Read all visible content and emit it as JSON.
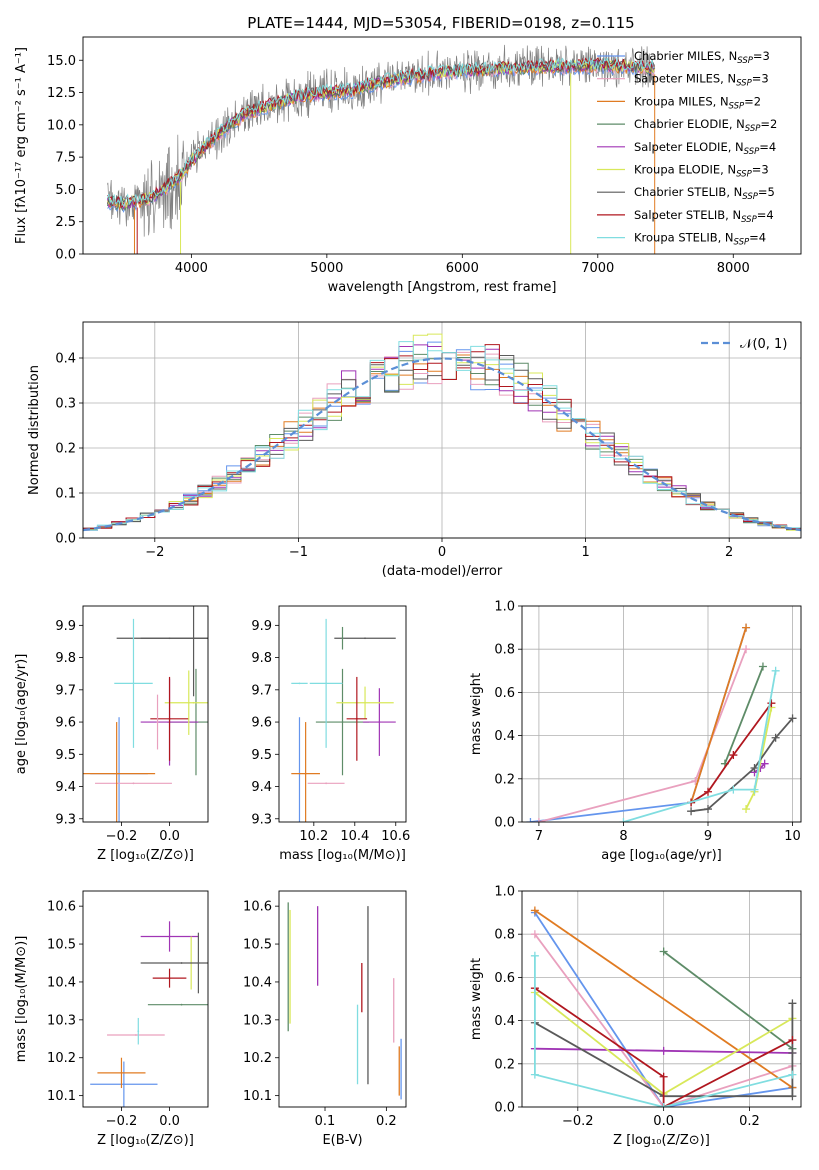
{
  "colors": {
    "chabrier_miles": "#6495ED",
    "salpeter_miles": "#E9A0BE",
    "kroupa_miles": "#E07B22",
    "chabrier_elodie": "#5E8C68",
    "salpeter_elodie": "#A035B5",
    "kroupa_elodie": "#D8E85A",
    "chabrier_stelib": "#5A5A5A",
    "salpeter_stelib": "#B0171F",
    "kroupa_stelib": "#80DDE0",
    "normal_dash": "#5B8FD6",
    "data": "#808080"
  },
  "chart_data": [
    {
      "type": "line",
      "title": "PLATE=1444, MJD=53054, FIBERID=0198, z=0.115",
      "xlabel": "wavelength [Angstrom, rest frame]",
      "ylabel": "Flux [fλ10⁻¹⁷ erg cm⁻² s⁻¹ A⁻¹]",
      "xlim": [
        3200,
        8500
      ],
      "ylim": [
        0,
        16.8
      ],
      "xticks": [
        "4000",
        "5000",
        "6000",
        "7000",
        "8000"
      ],
      "yticks": [
        "0.0",
        "2.5",
        "5.0",
        "7.5",
        "10.0",
        "12.5",
        "15.0"
      ],
      "x_range_data": [
        3380,
        7420
      ],
      "spectrum_shape": {
        "x": [
          3380,
          3500,
          3700,
          3900,
          4000,
          4200,
          4400,
          4600,
          4800,
          5000,
          5200,
          5400,
          5600,
          5800,
          6000,
          6200,
          6400,
          6600,
          6800,
          7000,
          7200,
          7420
        ],
        "y": [
          4.0,
          3.9,
          4.3,
          5.8,
          7.2,
          9.3,
          10.9,
          11.6,
          12.2,
          12.5,
          12.7,
          13.3,
          13.7,
          14.0,
          14.2,
          14.3,
          14.4,
          14.5,
          14.5,
          14.6,
          14.5,
          14.4
        ]
      },
      "legend_position": "upper right",
      "legend": [
        {
          "label": "Chabrier MILES, N",
          "sub": "SSP",
          "suffix": "=3",
          "color": "#6495ED"
        },
        {
          "label": "Salpeter MILES, N",
          "sub": "SSP",
          "suffix": "=3",
          "color": "#E9A0BE"
        },
        {
          "label": "Kroupa MILES, N",
          "sub": "SSP",
          "suffix": "=2",
          "color": "#E07B22"
        },
        {
          "label": "Chabrier ELODIE, N",
          "sub": "SSP",
          "suffix": "=2",
          "color": "#5E8C68"
        },
        {
          "label": "Salpeter ELODIE, N",
          "sub": "SSP",
          "suffix": "=4",
          "color": "#A035B5"
        },
        {
          "label": "Kroupa ELODIE, N",
          "sub": "SSP",
          "suffix": "=3",
          "color": "#D8E85A"
        },
        {
          "label": "Chabrier STELIB, N",
          "sub": "SSP",
          "suffix": "=5",
          "color": "#5A5A5A"
        },
        {
          "label": "Salpeter STELIB, N",
          "sub": "SSP",
          "suffix": "=4",
          "color": "#B0171F"
        },
        {
          "label": "Kroupa STELIB, N",
          "sub": "SSP",
          "suffix": "=4",
          "color": "#80DDE0"
        }
      ]
    },
    {
      "type": "area",
      "xlabel": "(data-model)/error",
      "ylabel": "Normed distribution",
      "xlim": [
        -2.5,
        2.5
      ],
      "ylim": [
        0,
        0.48
      ],
      "xticks": [
        "−2",
        "−1",
        "0",
        "1",
        "2"
      ],
      "yticks": [
        "0.0",
        "0.1",
        "0.2",
        "0.3",
        "0.4"
      ],
      "grid": true,
      "legend_label": "𝒩(0, 1)",
      "legend_position": "upper right",
      "bin_width": 0.1,
      "bin_start": -2.5
    },
    {
      "type": "scatter",
      "xlabel": "Z [log₁₀(Z/Z⊙)]",
      "ylabel": "age  [log₁₀(age/yr)]",
      "xlim": [
        -0.36,
        0.16
      ],
      "ylim": [
        9.29,
        9.96
      ],
      "xticks": [
        "−0.2",
        "0.0"
      ],
      "yticks": [
        "9.3",
        "9.4",
        "9.5",
        "9.6",
        "9.7",
        "9.8",
        "9.9"
      ],
      "points": [
        {
          "x": -0.21,
          "y": 9.44,
          "xerr": 0.12,
          "yerr": 0.35,
          "color": "#6495ED"
        },
        {
          "x": -0.15,
          "y": 9.41,
          "xerr": 0.16,
          "yerr": 0.0,
          "color": "#E9A0BE"
        },
        {
          "x": -0.22,
          "y": 9.44,
          "xerr": 0.16,
          "yerr": 0.32,
          "color": "#E07B22"
        },
        {
          "x": 0.11,
          "y": 9.6,
          "xerr": 0.12,
          "yerr": 0.33,
          "color": "#5E8C68"
        },
        {
          "x": 0.0,
          "y": 9.6,
          "xerr": 0.12,
          "yerr": 0.27,
          "color": "#A035B5"
        },
        {
          "x": 0.1,
          "y": 9.66,
          "xerr": 0.12,
          "yerr": 0.0,
          "color": "#D8E85A"
        },
        {
          "x": 0.0,
          "y": 9.86,
          "xerr": 0.22,
          "yerr": 0.0,
          "color": "#5A5A5A"
        },
        {
          "x": 0.1,
          "y": 9.86,
          "xerr": 0.22,
          "yerr": 0.36,
          "color": "#5A5A5A"
        },
        {
          "x": 0.0,
          "y": 9.61,
          "xerr": 0.08,
          "yerr": 0.26,
          "color": "#B0171F"
        },
        {
          "x": -0.15,
          "y": 9.72,
          "xerr": 0.08,
          "yerr": 0.4,
          "color": "#80DDE0"
        },
        {
          "x": -0.05,
          "y": 9.6,
          "xerr": 0.0,
          "yerr": 0.17,
          "color": "#E9A0BE"
        },
        {
          "x": 0.08,
          "y": 9.66,
          "xerr": 0.0,
          "yerr": 0.2,
          "color": "#D8E85A"
        }
      ]
    },
    {
      "type": "scatter",
      "xlabel": "mass [log₁₀(M/M⊙)]",
      "ylabel": "",
      "xlim": [
        10.03,
        10.65
      ],
      "ylim": [
        9.29,
        9.96
      ],
      "xticks": [
        "10.2",
        "10.4",
        "10.6"
      ],
      "yticks": [
        "9.3",
        "9.4",
        "9.5",
        "9.6",
        "9.7",
        "9.8",
        "9.9"
      ],
      "points": [
        {
          "x": 10.13,
          "y": 9.44,
          "xerr": 0.0,
          "yerr": 0.35,
          "color": "#6495ED"
        },
        {
          "x": 10.26,
          "y": 9.41,
          "xerr": 0.09,
          "yerr": 0.0,
          "color": "#E9A0BE"
        },
        {
          "x": 10.16,
          "y": 9.44,
          "xerr": 0.07,
          "yerr": 0.32,
          "color": "#E07B22"
        },
        {
          "x": 10.34,
          "y": 9.6,
          "xerr": 0.13,
          "yerr": 0.33,
          "color": "#5E8C68"
        },
        {
          "x": 10.52,
          "y": 9.6,
          "xerr": 0.08,
          "yerr": 0.21,
          "color": "#A035B5"
        },
        {
          "x": 10.45,
          "y": 9.66,
          "xerr": 0.14,
          "yerr": 0.1,
          "color": "#D8E85A"
        },
        {
          "x": 10.45,
          "y": 9.86,
          "xerr": 0.15,
          "yerr": 0.0,
          "color": "#5A5A5A"
        },
        {
          "x": 10.41,
          "y": 9.61,
          "xerr": 0.05,
          "yerr": 0.26,
          "color": "#B0171F"
        },
        {
          "x": 10.26,
          "y": 9.72,
          "xerr": 0.08,
          "yerr": 0.4,
          "color": "#80DDE0"
        },
        {
          "x": 10.13,
          "y": 9.72,
          "xerr": 0.04,
          "yerr": 0.0,
          "color": "#80DDE0"
        },
        {
          "x": 10.34,
          "y": 9.86,
          "xerr": 0.0,
          "yerr": 0.07,
          "color": "#5E8C68"
        }
      ]
    },
    {
      "type": "line",
      "xlabel": "age  [log₁₀(age/yr)]",
      "ylabel": "mass weight",
      "xlim": [
        6.8,
        10.1
      ],
      "ylim": [
        0,
        1.0
      ],
      "xticks": [
        "7",
        "8",
        "9",
        "10"
      ],
      "yticks": [
        "0.0",
        "0.2",
        "0.4",
        "0.6",
        "0.8",
        "1.0"
      ],
      "grid": true,
      "series": [
        {
          "color": "#6495ED",
          "x": [
            6.9,
            8.8,
            9.45
          ],
          "y": [
            0.0,
            0.09,
            0.9
          ]
        },
        {
          "color": "#E9A0BE",
          "x": [
            7.0,
            8.85,
            9.45
          ],
          "y": [
            0.0,
            0.19,
            0.8
          ]
        },
        {
          "color": "#E07B22",
          "x": [
            8.8,
            9.45
          ],
          "y": [
            0.09,
            0.9
          ]
        },
        {
          "color": "#5E8C68",
          "x": [
            9.2,
            9.65
          ],
          "y": [
            0.27,
            0.72
          ]
        },
        {
          "color": "#A035B5",
          "x": [
            9.55,
            9.62,
            9.67
          ],
          "y": [
            0.23,
            0.25,
            0.27
          ]
        },
        {
          "color": "#D8E85A",
          "x": [
            9.45,
            9.55,
            9.75
          ],
          "y": [
            0.06,
            0.14,
            0.53
          ]
        },
        {
          "color": "#5A5A5A",
          "x": [
            8.8,
            9.0,
            9.55,
            9.8,
            10.0
          ],
          "y": [
            0.05,
            0.06,
            0.25,
            0.39,
            0.48
          ]
        },
        {
          "color": "#B0171F",
          "x": [
            8.8,
            9.0,
            9.3,
            9.75
          ],
          "y": [
            0.09,
            0.14,
            0.31,
            0.55
          ]
        },
        {
          "color": "#80DDE0",
          "x": [
            8.0,
            9.3,
            9.55,
            9.8
          ],
          "y": [
            0.0,
            0.15,
            0.15,
            0.7
          ]
        }
      ]
    },
    {
      "type": "scatter",
      "xlabel": "Z [log₁₀(Z/Z⊙)]",
      "ylabel": "mass [log₁₀(M/M⊙)]",
      "xlim": [
        -0.36,
        0.16
      ],
      "ylim": [
        10.07,
        10.64
      ],
      "xticks": [
        "−0.2",
        "0.0"
      ],
      "yticks": [
        "10.1",
        "10.2",
        "10.3",
        "10.4",
        "10.5",
        "10.6"
      ],
      "points": [
        {
          "x": -0.19,
          "y": 10.13,
          "xerr": 0.14,
          "yerr": 0.12,
          "color": "#6495ED"
        },
        {
          "x": -0.2,
          "y": 10.16,
          "xerr": 0.1,
          "yerr": 0.08,
          "color": "#E07B22"
        },
        {
          "x": -0.14,
          "y": 10.26,
          "xerr": 0.12,
          "yerr": 0.0,
          "color": "#E9A0BE"
        },
        {
          "x": 0.05,
          "y": 10.34,
          "xerr": 0.14,
          "yerr": 0.0,
          "color": "#5E8C68"
        },
        {
          "x": 0.0,
          "y": 10.52,
          "xerr": 0.12,
          "yerr": 0.08,
          "color": "#A035B5"
        },
        {
          "x": 0.09,
          "y": 10.45,
          "xerr": 0.0,
          "yerr": 0.14,
          "color": "#D8E85A"
        },
        {
          "x": 0.05,
          "y": 10.45,
          "xerr": 0.17,
          "yerr": 0.0,
          "color": "#5A5A5A"
        },
        {
          "x": 0.12,
          "y": 10.45,
          "xerr": 0.0,
          "yerr": 0.16,
          "color": "#5A5A5A"
        },
        {
          "x": 0.0,
          "y": 10.41,
          "xerr": 0.07,
          "yerr": 0.05,
          "color": "#B0171F"
        },
        {
          "x": -0.13,
          "y": 10.27,
          "xerr": 0.0,
          "yerr": 0.07,
          "color": "#80DDE0"
        }
      ]
    },
    {
      "type": "scatter",
      "xlabel": "E(B-V)",
      "ylabel": "",
      "xlim": [
        0.025,
        0.232
      ],
      "ylim": [
        10.07,
        10.64
      ],
      "xticks": [
        "0.1",
        "0.2"
      ],
      "yticks": [
        "10.1",
        "10.2",
        "10.3",
        "10.4",
        "10.5",
        "10.6"
      ],
      "segments": [
        {
          "x": 0.04,
          "y0": 10.27,
          "y1": 10.61,
          "color": "#5E8C68"
        },
        {
          "x": 0.043,
          "y0": 10.29,
          "y1": 10.59,
          "color": "#D8E85A"
        },
        {
          "x": 0.088,
          "y0": 10.39,
          "y1": 10.6,
          "color": "#A035B5"
        },
        {
          "x": 0.153,
          "y0": 10.13,
          "y1": 10.34,
          "color": "#80DDE0"
        },
        {
          "x": 0.16,
          "y0": 10.32,
          "y1": 10.45,
          "color": "#B0171F"
        },
        {
          "x": 0.17,
          "y0": 10.13,
          "y1": 10.6,
          "color": "#5A5A5A"
        },
        {
          "x": 0.212,
          "y0": 10.24,
          "y1": 10.41,
          "color": "#E9A0BE"
        },
        {
          "x": 0.221,
          "y0": 10.1,
          "y1": 10.23,
          "color": "#E07B22"
        },
        {
          "x": 0.224,
          "y0": 10.09,
          "y1": 10.25,
          "color": "#6495ED"
        }
      ]
    },
    {
      "type": "line",
      "xlabel": "Z [log₁₀(Z/Z⊙)]",
      "ylabel": "mass weight",
      "xlim": [
        -0.33,
        0.32
      ],
      "ylim": [
        0,
        1.0
      ],
      "xticks": [
        "−0.2",
        "0.0",
        "0.2"
      ],
      "yticks": [
        "0.0",
        "0.2",
        "0.4",
        "0.6",
        "0.8",
        "1.0"
      ],
      "grid": true,
      "series": [
        {
          "color": "#6495ED",
          "x": [
            -0.3,
            0.0,
            0.3
          ],
          "y": [
            0.9,
            0.0,
            0.09
          ]
        },
        {
          "color": "#E9A0BE",
          "x": [
            -0.3,
            0.0,
            0.3
          ],
          "y": [
            0.8,
            0.0,
            0.19
          ]
        },
        {
          "color": "#E07B22",
          "x": [
            -0.3,
            0.3
          ],
          "y": [
            0.91,
            0.09
          ]
        },
        {
          "color": "#5E8C68",
          "x": [
            0.0,
            0.3
          ],
          "y": [
            0.72,
            0.27
          ]
        },
        {
          "color": "#A035B5",
          "x": [
            -0.3,
            0.0,
            0.3
          ],
          "y": [
            0.27,
            0.26,
            0.25
          ]
        },
        {
          "color": "#D8E85A",
          "x": [
            -0.3,
            0.0,
            0.3
          ],
          "y": [
            0.53,
            0.06,
            0.41
          ]
        },
        {
          "color": "#5A5A5A",
          "x": [
            -0.3,
            0.0,
            0.3,
            0.3,
            0.3
          ],
          "y": [
            0.39,
            0.05,
            0.05,
            0.25,
            0.48
          ]
        },
        {
          "color": "#B0171F",
          "x": [
            -0.3,
            0.0,
            0.0,
            0.3
          ],
          "y": [
            0.55,
            0.14,
            0.0,
            0.31
          ]
        },
        {
          "color": "#80DDE0",
          "x": [
            -0.3,
            -0.3,
            0.0,
            0.3
          ],
          "y": [
            0.7,
            0.15,
            0.0,
            0.15
          ]
        }
      ]
    }
  ]
}
